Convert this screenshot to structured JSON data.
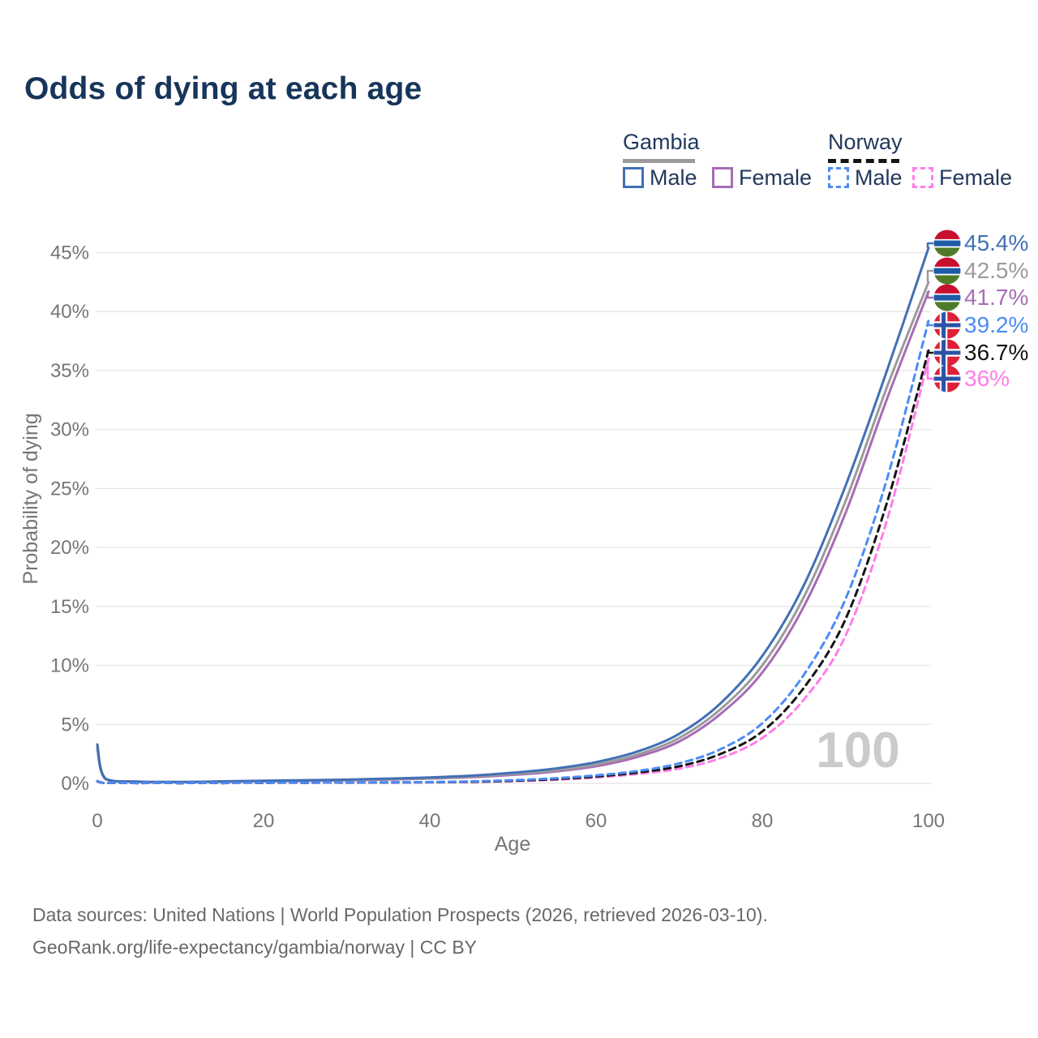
{
  "title": "Odds of dying at each age",
  "legend": {
    "groups": [
      {
        "country": "Gambia",
        "line_style": "solid",
        "underline_color": "#9b9b9b",
        "items": [
          {
            "label": "Male",
            "color": "#4170b5"
          },
          {
            "label": "Female",
            "color": "#a76cb5"
          }
        ]
      },
      {
        "country": "Norway",
        "line_style": "dashed",
        "underline_color": "#141414",
        "items": [
          {
            "label": "Male",
            "color": "#4d8cf5"
          },
          {
            "label": "Female",
            "color": "#ff7de8"
          }
        ]
      }
    ]
  },
  "watermark": "100",
  "footer": {
    "line1": "Data sources: United Nations | World Population Prospects (2026, retrieved 2026-03-10).",
    "line2": "GeoRank.org/life-expectancy/gambia/norway | CC BY"
  },
  "chart_data": {
    "type": "line",
    "title": "Odds of dying at each age",
    "xlabel": "Age",
    "ylabel": "Probability of dying",
    "xlim": [
      0,
      100
    ],
    "ylim_percent": [
      0,
      47
    ],
    "xticks": [
      0,
      20,
      40,
      60,
      80,
      100
    ],
    "yticks_percent": [
      0,
      5,
      10,
      15,
      20,
      25,
      30,
      35,
      40,
      45
    ],
    "grid": "horizontal",
    "legend_position": "top-right",
    "x_ages": [
      0,
      1,
      5,
      10,
      15,
      20,
      25,
      30,
      35,
      40,
      45,
      50,
      55,
      60,
      65,
      70,
      75,
      80,
      85,
      90,
      95,
      100
    ],
    "series": [
      {
        "name": "Gambia Female",
        "country": "Gambia",
        "sex": "Female",
        "flag": "gambia",
        "dash": "solid",
        "color": "#a76cb5",
        "end_label": "41.7%",
        "end_value": 41.7,
        "label_row": 2,
        "values": [
          2.9,
          0.35,
          0.13,
          0.1,
          0.13,
          0.17,
          0.21,
          0.26,
          0.32,
          0.41,
          0.52,
          0.72,
          1.0,
          1.45,
          2.25,
          3.55,
          5.9,
          9.4,
          15.0,
          22.9,
          32.6,
          41.7
        ]
      },
      {
        "name": "Gambia Both sexes",
        "country": "Gambia",
        "sex": "Both",
        "flag": "gambia",
        "dash": "solid",
        "color": "#9b9b9b",
        "end_label": "42.5%",
        "end_value": 42.5,
        "label_row": 1,
        "values": [
          3.1,
          0.37,
          0.14,
          0.11,
          0.15,
          0.19,
          0.24,
          0.29,
          0.36,
          0.45,
          0.58,
          0.8,
          1.1,
          1.6,
          2.45,
          3.85,
          6.3,
          10.0,
          15.8,
          23.9,
          33.6,
          42.5
        ]
      },
      {
        "name": "Gambia Male",
        "country": "Gambia",
        "sex": "Male",
        "flag": "gambia",
        "dash": "solid",
        "color": "#4170b5",
        "end_label": "45.4%",
        "end_value": 45.4,
        "label_row": 0,
        "values": [
          3.3,
          0.4,
          0.15,
          0.12,
          0.17,
          0.22,
          0.27,
          0.32,
          0.4,
          0.5,
          0.65,
          0.9,
          1.25,
          1.8,
          2.7,
          4.2,
          6.8,
          10.8,
          16.8,
          25.2,
          35.0,
          45.4
        ]
      },
      {
        "name": "Norway Female",
        "country": "Norway",
        "sex": "Female",
        "flag": "norway",
        "dash": "dashed",
        "color": "#ff7de8",
        "end_label": "36%",
        "end_value": 36.0,
        "label_row": 5,
        "values": [
          0.17,
          0.02,
          0.01,
          0.01,
          0.02,
          0.03,
          0.04,
          0.05,
          0.06,
          0.08,
          0.12,
          0.19,
          0.3,
          0.5,
          0.8,
          1.25,
          2.15,
          3.85,
          7.1,
          12.5,
          22.3,
          36.0
        ]
      },
      {
        "name": "Norway Both sexes",
        "country": "Norway",
        "sex": "Both",
        "flag": "norway",
        "dash": "dashed",
        "color": "#141414",
        "end_label": "36.7%",
        "end_value": 36.7,
        "label_row": 4,
        "values": [
          0.19,
          0.02,
          0.01,
          0.01,
          0.02,
          0.04,
          0.05,
          0.06,
          0.08,
          0.1,
          0.14,
          0.22,
          0.36,
          0.58,
          0.92,
          1.45,
          2.5,
          4.4,
          8.1,
          13.9,
          23.8,
          36.7
        ]
      },
      {
        "name": "Norway Male",
        "country": "Norway",
        "sex": "Male",
        "flag": "norway",
        "dash": "dashed",
        "color": "#4d8cf5",
        "end_label": "39.2%",
        "end_value": 39.2,
        "label_row": 3,
        "values": [
          0.2,
          0.03,
          0.01,
          0.01,
          0.03,
          0.05,
          0.06,
          0.07,
          0.09,
          0.11,
          0.17,
          0.27,
          0.43,
          0.68,
          1.05,
          1.7,
          2.9,
          5.1,
          9.2,
          15.6,
          25.8,
          39.2
        ]
      }
    ],
    "flag_colors": {
      "gambia": {
        "red": "#c8102e",
        "blue": "#1e5aa6",
        "green": "#4f7b28",
        "white": "#ffffff"
      },
      "norway": {
        "red": "#de2038",
        "blue": "#2b52a5",
        "white": "#ffffff"
      }
    }
  }
}
